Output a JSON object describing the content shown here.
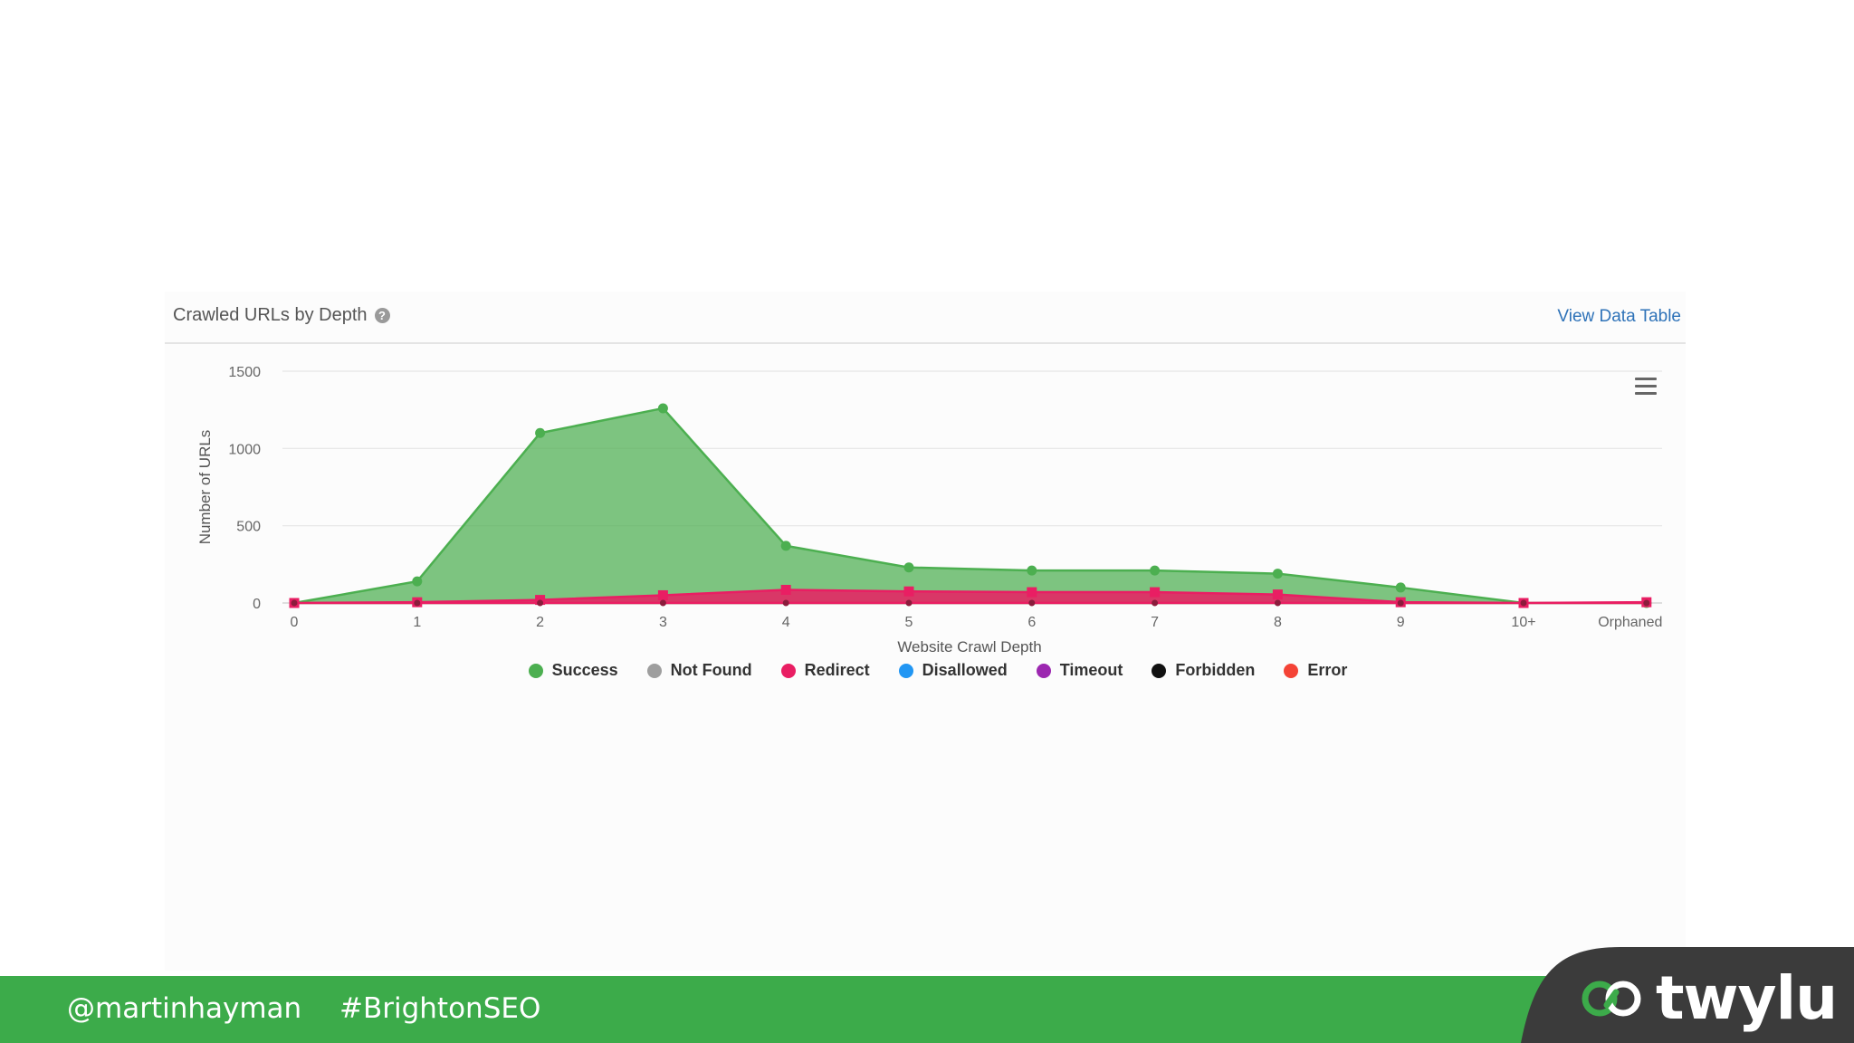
{
  "panel": {
    "title": "Crawled URLs by Depth",
    "help_icon": "?",
    "view_data_table": "View Data Table"
  },
  "chart_data": {
    "type": "area",
    "title": "",
    "xlabel": "Website Crawl Depth",
    "ylabel": "Number of URLs",
    "categories": [
      "0",
      "1",
      "2",
      "3",
      "4",
      "5",
      "6",
      "7",
      "8",
      "9",
      "10+",
      "Orphaned"
    ],
    "ylim": [
      0,
      1500
    ],
    "yticks": [
      0,
      500,
      1000,
      1500
    ],
    "grid": true,
    "legend_position": "bottom",
    "series": [
      {
        "name": "Success",
        "color": "#4caf50",
        "values": [
          0,
          140,
          1100,
          1260,
          370,
          230,
          210,
          210,
          190,
          100,
          0,
          0
        ]
      },
      {
        "name": "Not Found",
        "color": "#9e9e9e",
        "values": [
          0,
          0,
          0,
          0,
          0,
          0,
          0,
          0,
          0,
          0,
          0,
          0
        ]
      },
      {
        "name": "Redirect",
        "color": "#e91e63",
        "values": [
          0,
          5,
          20,
          50,
          85,
          75,
          70,
          70,
          55,
          5,
          0,
          5
        ]
      },
      {
        "name": "Disallowed",
        "color": "#2196f3",
        "values": [
          0,
          0,
          0,
          0,
          0,
          0,
          0,
          0,
          0,
          0,
          0,
          0
        ]
      },
      {
        "name": "Timeout",
        "color": "#9c27b0",
        "values": [
          0,
          0,
          0,
          0,
          0,
          0,
          0,
          0,
          0,
          0,
          0,
          0
        ]
      },
      {
        "name": "Forbidden",
        "color": "#111111",
        "values": [
          0,
          0,
          0,
          0,
          0,
          0,
          0,
          0,
          0,
          0,
          0,
          0
        ]
      },
      {
        "name": "Error",
        "color": "#f44336",
        "values": [
          0,
          0,
          0,
          0,
          0,
          0,
          0,
          0,
          0,
          0,
          0,
          0
        ]
      }
    ]
  },
  "footer": {
    "handle": "@martinhayman",
    "hashtag": "#BrightonSEO",
    "logo_text": "twylu",
    "logo_icon": "infinity-link-icon"
  }
}
